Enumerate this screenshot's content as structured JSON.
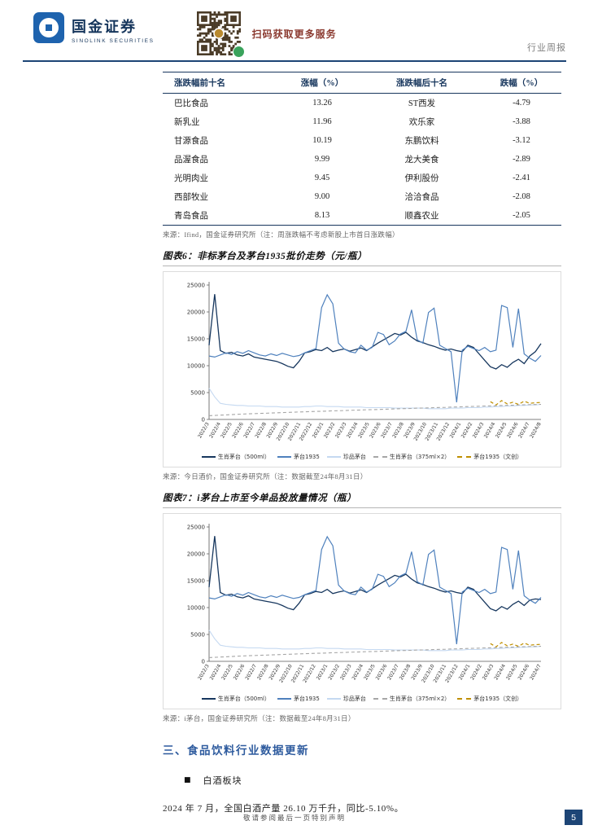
{
  "header": {
    "brand_cn": "国金证券",
    "brand_en": "SINOLINK SECURITIES",
    "qr_caption": "扫码获取更多服务",
    "doc_type": "行业周报"
  },
  "table": {
    "headers": [
      "涨跌幅前十名",
      "涨幅（%）",
      "涨跌幅后十名",
      "跌幅（%）"
    ],
    "rows": [
      [
        "巴比食品",
        "13.26",
        "ST西发",
        "-4.79"
      ],
      [
        "新乳业",
        "11.96",
        "欢乐家",
        "-3.88"
      ],
      [
        "甘源食品",
        "10.19",
        "东鹏饮料",
        "-3.12"
      ],
      [
        "品渥食品",
        "9.99",
        "龙大美食",
        "-2.89"
      ],
      [
        "光明肉业",
        "9.45",
        "伊利股份",
        "-2.41"
      ],
      [
        "西部牧业",
        "9.00",
        "洽洽食品",
        "-2.08"
      ],
      [
        "青岛食品",
        "8.13",
        "顺鑫农业",
        "-2.05"
      ]
    ],
    "source": "来源：Ifind，国金证券研究所（注：周涨跌幅不考虑新股上市首日涨跌幅）"
  },
  "chart_data": [
    {
      "type": "line",
      "title": "图表6：非标茅台及茅台1935批价走势（元/瓶）",
      "source": "来源：今日酒价，国金证券研究所（注：数据截至24年8月31日）",
      "ylim": [
        0,
        25000
      ],
      "yticks": [
        0,
        5000,
        10000,
        15000,
        20000,
        25000
      ],
      "points": 60,
      "categories": [
        "2022/3",
        "2022/4",
        "2022/5",
        "2022/6",
        "2022/7",
        "2022/8",
        "2022/9",
        "2022/10",
        "2022/11",
        "2022/12",
        "2023/1",
        "2023/2",
        "2023/3",
        "2023/4",
        "2023/5",
        "2023/6",
        "2023/7",
        "2023/8",
        "2023/9",
        "2023/10",
        "2023/11",
        "2023/12",
        "2024/1",
        "2024/2",
        "2024/3",
        "2024/4",
        "2024/5",
        "2024/6",
        "2024/7",
        "2024/8"
      ],
      "series": [
        {
          "name": "生肖茅台（500ml）",
          "color": "#17375e",
          "width": 1.3,
          "values": [
            13800,
            23300,
            12800,
            12300,
            12500,
            12000,
            11800,
            12200,
            11600,
            11400,
            11200,
            11000,
            10800,
            10400,
            9900,
            9600,
            10800,
            12400,
            12600,
            13000,
            12800,
            13400,
            12600,
            12900,
            13100,
            12700,
            13000,
            13300,
            12800,
            13500,
            14200,
            14800,
            15400,
            16000,
            15700,
            16200,
            15300,
            14600,
            14300,
            13900,
            13600,
            13200,
            12900,
            13100,
            12800,
            12600,
            13800,
            13400,
            12200,
            11000,
            9800,
            9400,
            10200,
            9700,
            10600,
            11200,
            10400,
            11800,
            12600,
            14100
          ]
        },
        {
          "name": "茅台1935",
          "color": "#4f81bd",
          "width": 1.2,
          "values": [
            11800,
            11600,
            12000,
            12400,
            12100,
            12600,
            12300,
            12800,
            12400,
            12000,
            11800,
            12200,
            11900,
            12300,
            12000,
            11700,
            11900,
            12400,
            12800,
            13200,
            20800,
            23200,
            21500,
            14200,
            13100,
            12600,
            12400,
            13800,
            12900,
            13400,
            16200,
            15800,
            13900,
            14600,
            15900,
            16400,
            20400,
            14800,
            14200,
            19900,
            20700,
            13800,
            13200,
            12600,
            3200,
            12900,
            13600,
            13200,
            12800,
            13400,
            12600,
            12900,
            21200,
            20800,
            13400,
            20600,
            12200,
            11400,
            10800,
            11900
          ]
        },
        {
          "name": "珍品茅台",
          "color": "#c5d9f1",
          "width": 1.1,
          "values": [
            5800,
            4200,
            3000,
            2800,
            2700,
            2600,
            2600,
            2500,
            2500,
            2500,
            2400,
            2400,
            2400,
            2300,
            2300,
            2300,
            2300,
            2400,
            2400,
            2500,
            2500,
            2400,
            2400,
            2400,
            2300,
            2300,
            2300,
            2300,
            2200,
            2200,
            2200,
            2200,
            2200,
            2100,
            2100,
            2100,
            2100,
            2100,
            2100,
            2000,
            2000,
            2000,
            2000,
            2100,
            2100,
            2100,
            2200,
            2200,
            2200,
            2300,
            2300,
            2400,
            2400,
            2500,
            2500,
            2600,
            2600,
            2700,
            2700,
            2800
          ]
        },
        {
          "name": "生肖茅台（375ml×2）",
          "color": "#a6a6a6",
          "width": 1.1,
          "dash": "4 3",
          "values": [
            700,
            750,
            800,
            850,
            900,
            950,
            1000,
            1050,
            1080,
            1120,
            1150,
            1200,
            1250,
            1280,
            1320,
            1350,
            1400,
            1420,
            1450,
            1500,
            1520,
            1550,
            1600,
            1620,
            1650,
            1700,
            1720,
            1750,
            1800,
            1820,
            1850,
            1900,
            1920,
            1950,
            2000,
            2020,
            2050,
            2100,
            2120,
            2150,
            2200,
            2220,
            2250,
            2300,
            2320,
            2350,
            2400,
            2420,
            2450,
            2500,
            2520,
            2550,
            2600,
            2620,
            2650,
            2700,
            2720,
            2750,
            2780,
            2800
          ]
        },
        {
          "name": "茅台1935（文创）",
          "color": "#bf8f00",
          "width": 1.2,
          "dash": "4 3",
          "offset": 50,
          "values": [
            3300,
            2700,
            3500,
            2900,
            3200,
            2800,
            3400,
            3000,
            3100,
            3150
          ]
        }
      ]
    },
    {
      "type": "line",
      "title": "图表7：i茅台上市至今单品投放量情况（瓶）",
      "source": "来源：i茅台，国金证券研究所（注：数据截至24年8月31日）",
      "ylim": [
        0,
        25000
      ],
      "yticks": [
        0,
        5000,
        10000,
        15000,
        20000,
        25000
      ],
      "points": 60,
      "categories": [
        "2022/3",
        "2022/4",
        "2022/5",
        "2022/6",
        "2022/7",
        "2022/8",
        "2022/9",
        "2022/10",
        "2022/11",
        "2022/12",
        "2023/1",
        "2023/2",
        "2023/3",
        "2023/4",
        "2023/5",
        "2023/6",
        "2023/7",
        "2023/8",
        "2023/9",
        "2023/10",
        "2023/11",
        "2023/12",
        "2024/1",
        "2024/2",
        "2024/3",
        "2024/4",
        "2024/5",
        "2024/6",
        "2024/7"
      ],
      "series": [
        {
          "name": "生肖茅台（500ml）",
          "color": "#17375e",
          "width": 1.3,
          "values": [
            13800,
            23300,
            12800,
            12300,
            12500,
            12000,
            11800,
            12200,
            11600,
            11400,
            11200,
            11000,
            10800,
            10400,
            9900,
            9600,
            10800,
            12400,
            12600,
            13000,
            12800,
            13400,
            12600,
            12900,
            13100,
            12700,
            13000,
            13300,
            12800,
            13500,
            14200,
            14800,
            15400,
            16000,
            15700,
            16200,
            15300,
            14600,
            14300,
            13900,
            13600,
            13200,
            12900,
            13100,
            12800,
            12600,
            13800,
            13400,
            12200,
            11000,
            9800,
            9400,
            10200,
            9700,
            10600,
            11200,
            10400,
            11400,
            11600,
            11500
          ]
        },
        {
          "name": "茅台1935",
          "color": "#4f81bd",
          "width": 1.2,
          "values": [
            11800,
            11600,
            12000,
            12400,
            12100,
            12600,
            12300,
            12800,
            12400,
            12000,
            11800,
            12200,
            11900,
            12300,
            12000,
            11700,
            11900,
            12400,
            12800,
            13200,
            20800,
            23200,
            21500,
            14200,
            13100,
            12600,
            12400,
            13800,
            12900,
            13400,
            16200,
            15800,
            13900,
            14600,
            15900,
            16400,
            20400,
            14800,
            14200,
            19900,
            20700,
            13800,
            13200,
            12600,
            3200,
            12900,
            13600,
            13200,
            12800,
            13400,
            12600,
            12900,
            21200,
            20800,
            13400,
            20600,
            12200,
            11400,
            10800,
            11900
          ]
        },
        {
          "name": "珍品茅台",
          "color": "#c5d9f1",
          "width": 1.1,
          "values": [
            5800,
            4200,
            3000,
            2800,
            2700,
            2600,
            2600,
            2500,
            2500,
            2500,
            2400,
            2400,
            2400,
            2300,
            2300,
            2300,
            2300,
            2400,
            2400,
            2500,
            2500,
            2400,
            2400,
            2400,
            2300,
            2300,
            2300,
            2300,
            2200,
            2200,
            2200,
            2200,
            2200,
            2100,
            2100,
            2100,
            2100,
            2100,
            2100,
            2000,
            2000,
            2000,
            2000,
            2100,
            2100,
            2100,
            2200,
            2200,
            2200,
            2300,
            2300,
            2400,
            2400,
            2500,
            2500,
            2600,
            2600,
            2700,
            2700,
            2800
          ]
        },
        {
          "name": "生肖茅台（375ml×2）",
          "color": "#a6a6a6",
          "width": 1.1,
          "dash": "4 3",
          "values": [
            700,
            750,
            800,
            850,
            900,
            950,
            1000,
            1050,
            1080,
            1120,
            1150,
            1200,
            1250,
            1280,
            1320,
            1350,
            1400,
            1420,
            1450,
            1500,
            1520,
            1550,
            1600,
            1620,
            1650,
            1700,
            1720,
            1750,
            1800,
            1820,
            1850,
            1900,
            1920,
            1950,
            2000,
            2020,
            2050,
            2100,
            2120,
            2150,
            2200,
            2220,
            2250,
            2300,
            2320,
            2350,
            2400,
            2420,
            2450,
            2500,
            2520,
            2550,
            2600,
            2620,
            2650,
            2700,
            2720,
            2750,
            2780,
            2800
          ]
        },
        {
          "name": "茅台1935（文创）",
          "color": "#bf8f00",
          "width": 1.2,
          "dash": "4 3",
          "offset": 50,
          "values": [
            3300,
            2700,
            3500,
            2900,
            3200,
            2800,
            3400,
            3000,
            3100,
            3150
          ]
        }
      ]
    }
  ],
  "section": {
    "heading": "三、食品饮料行业数据更新",
    "bullet_glyph": "■",
    "bullet_label": "白酒板块",
    "paragraph": "2024 年 7 月，全国白酒产量 26.10 万千升，同比-5.10%。"
  },
  "footer": {
    "disclaimer": "敬请参阅最后一页特别声明",
    "page_number": "5"
  }
}
